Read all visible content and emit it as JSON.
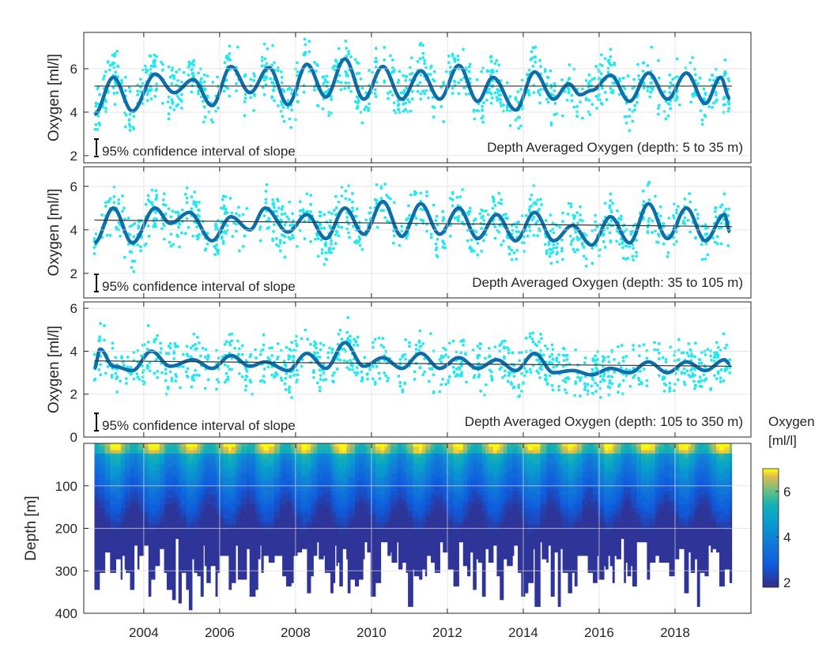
{
  "chart_data": [
    {
      "type": "scatter+line",
      "ylabel": "Oxygen [ml/l]",
      "annotation": "Depth Averaged Oxygen (depth: 5 to 35 m)",
      "ci_label": "95% confidence interval of slope",
      "ylim": [
        1.67,
        7.67
      ],
      "yticks": [
        2,
        4,
        6
      ],
      "xlim": [
        2002.42,
        2020.0
      ],
      "trend": [
        [
          2002.7,
          5.2
        ],
        [
          2019.5,
          5.2
        ]
      ],
      "smooth": [
        [
          2002.7,
          3.9
        ],
        [
          2003.2,
          5.6
        ],
        [
          2003.7,
          4.05
        ],
        [
          2004.3,
          5.75
        ],
        [
          2004.8,
          4.9
        ],
        [
          2005.3,
          5.5
        ],
        [
          2005.8,
          4.3
        ],
        [
          2006.3,
          6.1
        ],
        [
          2006.8,
          4.9
        ],
        [
          2007.3,
          6.05
        ],
        [
          2007.8,
          4.35
        ],
        [
          2008.3,
          6.2
        ],
        [
          2008.8,
          4.7
        ],
        [
          2009.3,
          6.45
        ],
        [
          2009.8,
          4.6
        ],
        [
          2010.3,
          6.1
        ],
        [
          2010.8,
          4.6
        ],
        [
          2011.3,
          5.9
        ],
        [
          2011.8,
          4.6
        ],
        [
          2012.3,
          6.15
        ],
        [
          2012.8,
          4.5
        ],
        [
          2013.2,
          5.6
        ],
        [
          2013.8,
          4.1
        ],
        [
          2014.3,
          5.85
        ],
        [
          2014.8,
          4.6
        ],
        [
          2015.2,
          5.3
        ],
        [
          2015.5,
          4.8
        ],
        [
          2015.8,
          5.0
        ],
        [
          2016.3,
          5.7
        ],
        [
          2016.8,
          4.5
        ],
        [
          2017.3,
          5.8
        ],
        [
          2017.8,
          4.6
        ],
        [
          2018.3,
          5.8
        ],
        [
          2018.8,
          4.4
        ],
        [
          2019.2,
          5.6
        ],
        [
          2019.45,
          4.6
        ]
      ]
    },
    {
      "type": "scatter+line",
      "ylabel": "Oxygen [ml/l]",
      "annotation": "Depth Averaged Oxygen (depth: 35 to 105 m)",
      "ci_label": "95% confidence interval of slope",
      "ylim": [
        0.87,
        6.9
      ],
      "yticks": [
        2,
        4,
        6
      ],
      "xlim": [
        2002.42,
        2020.0
      ],
      "trend": [
        [
          2002.7,
          4.45
        ],
        [
          2019.5,
          4.15
        ]
      ],
      "smooth": [
        [
          2002.7,
          3.4
        ],
        [
          2003.2,
          5.0
        ],
        [
          2003.7,
          3.4
        ],
        [
          2004.3,
          5.0
        ],
        [
          2004.7,
          4.3
        ],
        [
          2005.2,
          4.8
        ],
        [
          2005.8,
          3.5
        ],
        [
          2006.3,
          4.6
        ],
        [
          2006.8,
          4.0
        ],
        [
          2007.2,
          5.0
        ],
        [
          2007.8,
          3.9
        ],
        [
          2008.3,
          4.7
        ],
        [
          2008.8,
          3.6
        ],
        [
          2009.3,
          5.0
        ],
        [
          2009.8,
          3.8
        ],
        [
          2010.3,
          5.3
        ],
        [
          2010.8,
          3.7
        ],
        [
          2011.3,
          5.2
        ],
        [
          2011.8,
          3.8
        ],
        [
          2012.3,
          5.0
        ],
        [
          2012.8,
          3.6
        ],
        [
          2013.3,
          4.7
        ],
        [
          2013.8,
          3.5
        ],
        [
          2014.3,
          4.8
        ],
        [
          2014.8,
          3.5
        ],
        [
          2015.3,
          4.2
        ],
        [
          2015.8,
          3.3
        ],
        [
          2016.3,
          4.6
        ],
        [
          2016.8,
          3.4
        ],
        [
          2017.3,
          5.2
        ],
        [
          2017.8,
          3.6
        ],
        [
          2018.3,
          5.0
        ],
        [
          2018.8,
          3.5
        ],
        [
          2019.3,
          4.7
        ],
        [
          2019.45,
          3.9
        ]
      ]
    },
    {
      "type": "scatter+line",
      "ylabel": "Oxygen [ml/l]",
      "annotation": "Depth Averaged Oxygen (depth: 105 to 350 m)",
      "ci_label": "95% confidence interval of slope",
      "ylim": [
        0,
        6.3
      ],
      "yticks": [
        0,
        2,
        4,
        6
      ],
      "xlim": [
        2002.42,
        2020.0
      ],
      "trend": [
        [
          2002.7,
          3.55
        ],
        [
          2019.5,
          3.3
        ]
      ],
      "smooth": [
        [
          2002.7,
          3.2
        ],
        [
          2002.85,
          4.1
        ],
        [
          2003.2,
          3.3
        ],
        [
          2003.7,
          3.1
        ],
        [
          2004.2,
          4.0
        ],
        [
          2004.7,
          3.3
        ],
        [
          2005.3,
          3.6
        ],
        [
          2005.8,
          3.2
        ],
        [
          2006.3,
          3.8
        ],
        [
          2006.8,
          3.3
        ],
        [
          2007.2,
          3.5
        ],
        [
          2007.8,
          3.1
        ],
        [
          2008.3,
          3.9
        ],
        [
          2008.8,
          3.2
        ],
        [
          2009.3,
          4.4
        ],
        [
          2009.8,
          3.3
        ],
        [
          2010.3,
          3.7
        ],
        [
          2010.8,
          3.2
        ],
        [
          2011.3,
          3.9
        ],
        [
          2011.8,
          3.2
        ],
        [
          2012.3,
          3.7
        ],
        [
          2012.8,
          3.2
        ],
        [
          2013.3,
          3.6
        ],
        [
          2013.8,
          3.1
        ],
        [
          2014.3,
          3.9
        ],
        [
          2014.8,
          3.0
        ],
        [
          2015.3,
          3.1
        ],
        [
          2015.8,
          2.9
        ],
        [
          2016.3,
          3.2
        ],
        [
          2016.8,
          3.0
        ],
        [
          2017.3,
          3.5
        ],
        [
          2017.8,
          3.0
        ],
        [
          2018.3,
          3.5
        ],
        [
          2018.8,
          3.1
        ],
        [
          2019.3,
          3.6
        ],
        [
          2019.45,
          3.4
        ]
      ]
    },
    {
      "type": "heatmap",
      "ylabel": "Depth [m]",
      "ylim": [
        400,
        0
      ],
      "yticks": [
        100,
        200,
        300,
        400
      ],
      "xlim": [
        2002.42,
        2020.0
      ],
      "xticks": [
        2004,
        2006,
        2008,
        2010,
        2012,
        2014,
        2016,
        2018
      ],
      "colorbar": {
        "label_line1": "Oxygen",
        "label_line2": "[ml/l]",
        "range": [
          1.8,
          7.0
        ],
        "ticks": [
          2,
          4,
          6
        ],
        "colormap": "parula"
      }
    }
  ],
  "colors": {
    "scatter": "#22e8f0",
    "smooth": "#0e6eaa",
    "trend": "#333333",
    "grid": "#dcdcdc",
    "axis": "#262626"
  }
}
